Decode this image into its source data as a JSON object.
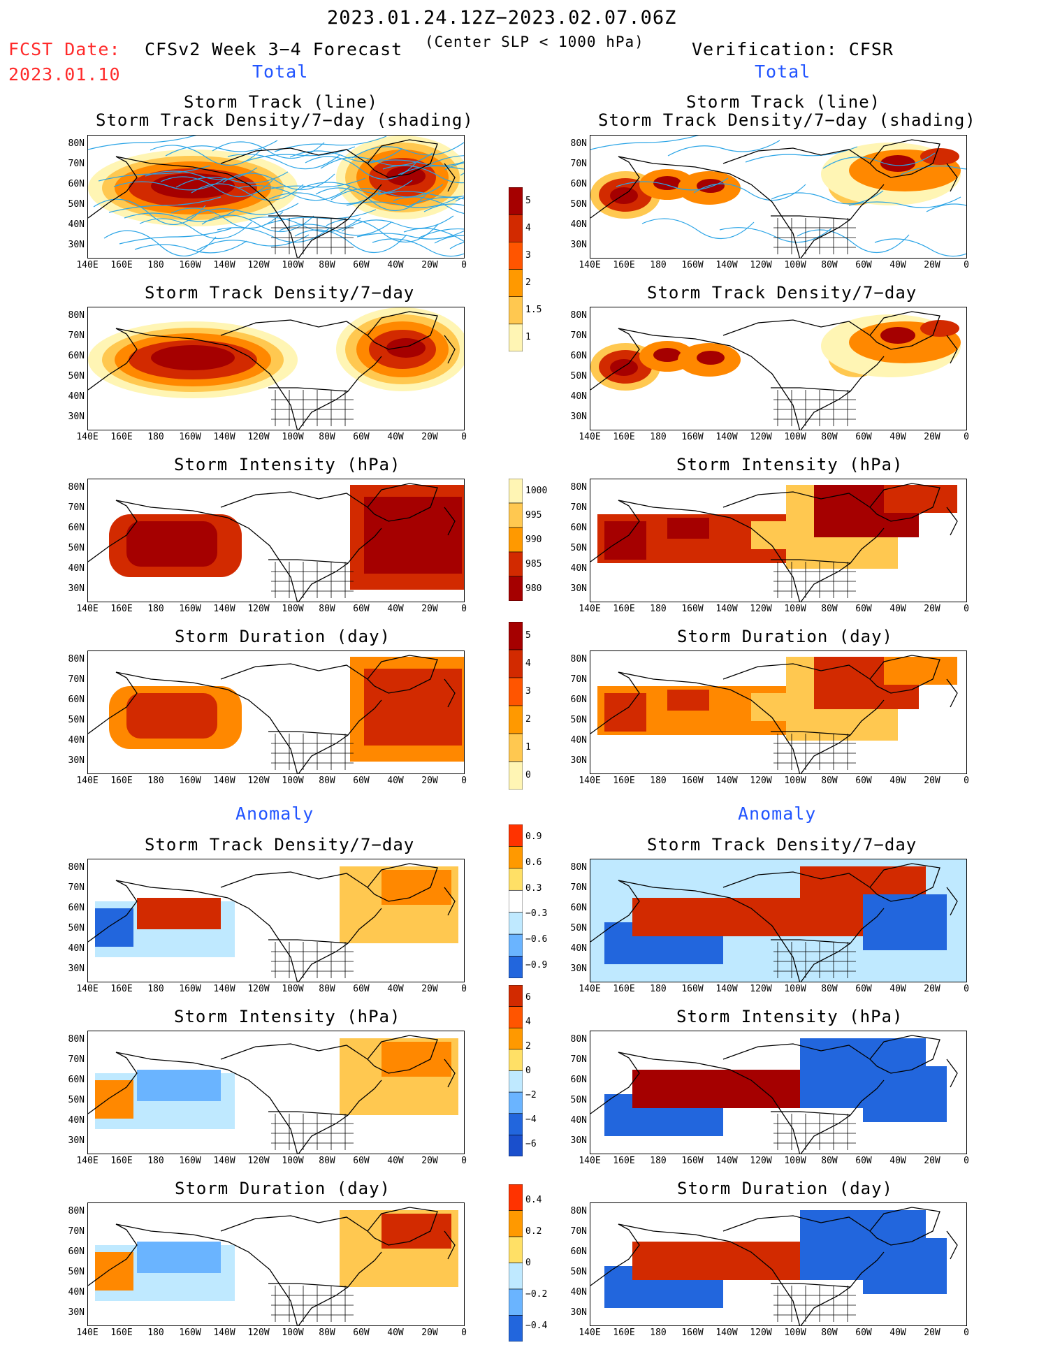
{
  "header": {
    "period": "2023.01.24.12Z−2023.02.07.06Z",
    "fcst_label": "FCST Date:",
    "fcst_date": "2023.01.10",
    "left_title": "CFSv2 Week 3−4 Forecast",
    "subtitle": "(Center SLP < 1000 hPa)",
    "right_title": "Verification: CFSR"
  },
  "sections": {
    "total": "Total",
    "anomaly": "Anomaly"
  },
  "panel_titles": {
    "track_line": "Storm Track (line)",
    "track_shading": "Storm Track Density/7−day (shading)",
    "density": "Storm Track Density/7−day",
    "intensity": "Storm Intensity (hPa)",
    "duration": "Storm Duration (day)"
  },
  "axes": {
    "lat_labels": [
      "80N",
      "70N",
      "60N",
      "50N",
      "40N",
      "30N"
    ],
    "lon_labels": [
      "140E",
      "160E",
      "180",
      "160W",
      "140W",
      "120W",
      "100W",
      "80W",
      "60W",
      "40W",
      "20W",
      "0"
    ]
  },
  "colors": {
    "track_line": "#2aa4e6",
    "storm_dark": "#a50000",
    "storm_red": "#d22a00",
    "storm_orange": "#ff8800",
    "storm_yellow": "#ffc850",
    "storm_pale": "#fff5b4",
    "anom_blue": "#2266dd",
    "anom_light_blue": "#bfe9ff"
  },
  "colorbars": [
    {
      "name": "density",
      "labels": [
        "5",
        "4",
        "3",
        "2",
        "1.5",
        "1"
      ],
      "colors": [
        "#a50000",
        "#d22a00",
        "#ff5500",
        "#ff9900",
        "#ffc850",
        "#fff5b4"
      ]
    },
    {
      "name": "intensity",
      "labels": [
        "1000",
        "995",
        "990",
        "985",
        "980"
      ],
      "colors": [
        "#fff5b4",
        "#ffc850",
        "#ff9900",
        "#d22a00",
        "#a50000"
      ]
    },
    {
      "name": "duration",
      "labels": [
        "5",
        "4",
        "3",
        "2",
        "1",
        "0"
      ],
      "colors": [
        "#a50000",
        "#d22a00",
        "#ff5500",
        "#ff9900",
        "#ffc850",
        "#fff5b4"
      ]
    },
    {
      "name": "density-anomaly",
      "labels": [
        "0.9",
        "0.6",
        "0.3",
        "−0.3",
        "−0.6",
        "−0.9"
      ],
      "colors": [
        "#ff3300",
        "#ff9900",
        "#ffe066",
        "#ffffff",
        "#bfe9ff",
        "#6ab4ff",
        "#2266dd"
      ]
    },
    {
      "name": "intensity-anomaly",
      "labels": [
        "6",
        "4",
        "2",
        "0",
        "−2",
        "−4",
        "−6"
      ],
      "colors": [
        "#d22a00",
        "#ff5500",
        "#ff9900",
        "#ffe066",
        "#bfe9ff",
        "#6ab4ff",
        "#2266dd",
        "#1a4fcc"
      ]
    },
    {
      "name": "duration-anomaly",
      "labels": [
        "0.4",
        "0.2",
        "0",
        "−0.2",
        "−0.4"
      ],
      "colors": [
        "#ff3300",
        "#ff9900",
        "#ffe066",
        "#bfe9ff",
        "#6ab4ff",
        "#2266dd"
      ]
    }
  ]
}
